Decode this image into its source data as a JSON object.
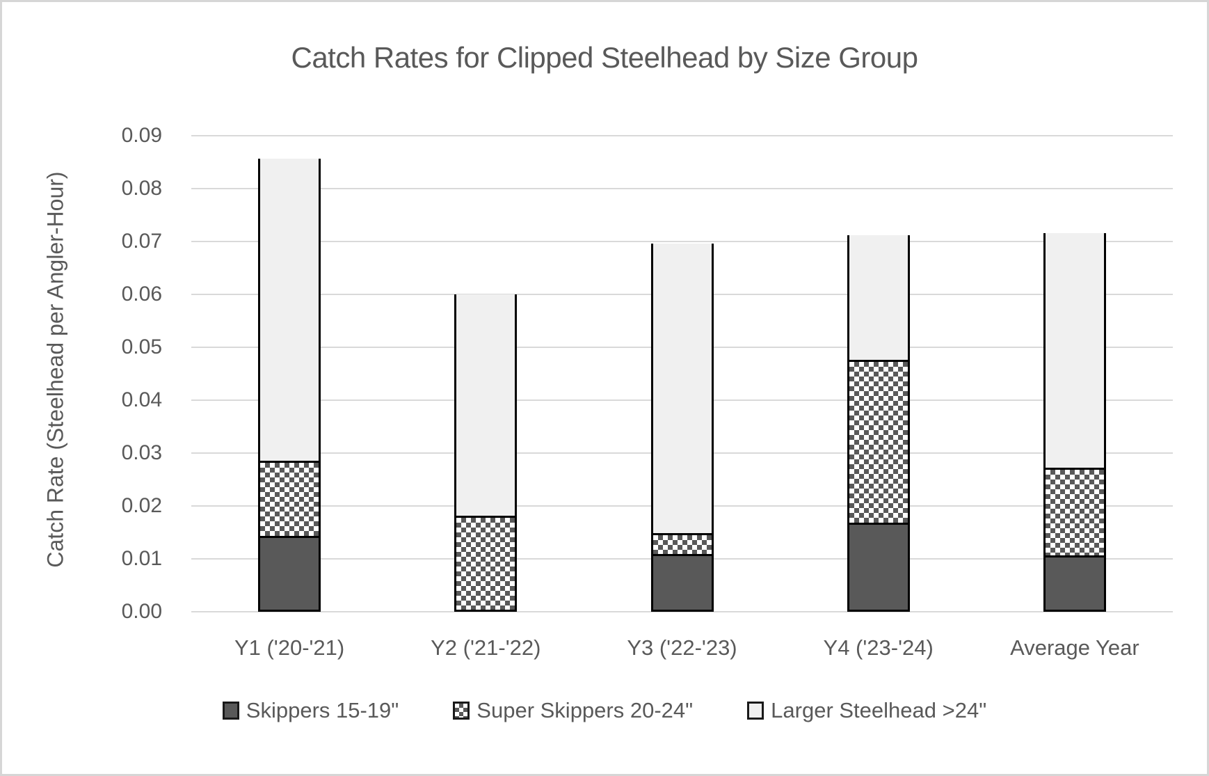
{
  "chart_data": {
    "type": "bar",
    "stacked": true,
    "title": "Catch Rates for Clipped Steelhead by Size Group",
    "xlabel": "",
    "ylabel": "Catch Rate (Steelhead per Angler-Hour)",
    "categories": [
      "Y1 ('20-'21)",
      "Y2 ('21-'22)",
      "Y3 ('22-'23)",
      "Y4 ('23-'24)",
      "Average Year"
    ],
    "series": [
      {
        "name": "Skippers 15-19\"",
        "fill": "dark",
        "values": [
          0.014,
          0.0,
          0.0105,
          0.0165,
          0.0102
        ]
      },
      {
        "name": "Super Skippers 20-24\"",
        "fill": "checker",
        "values": [
          0.0142,
          0.0178,
          0.004,
          0.0307,
          0.0167
        ]
      },
      {
        "name": "Larger Steelhead >24\"",
        "fill": "light",
        "values": [
          0.0571,
          0.0418,
          0.0547,
          0.0236,
          0.0443
        ]
      }
    ],
    "totals": [
      0.0853,
      0.0596,
      0.0692,
      0.0708,
      0.0712
    ],
    "ylim": [
      0,
      0.09
    ],
    "ytick_step": 0.01,
    "ytick_decimals": 2,
    "ytick_labels": [
      "0.00",
      "0.01",
      "0.02",
      "0.03",
      "0.04",
      "0.05",
      "0.06",
      "0.07",
      "0.08",
      "0.09"
    ],
    "grid": true,
    "legend_position": "bottom"
  },
  "colors": {
    "text": "#595959",
    "dark": "#595959",
    "light": "#f0f0f0",
    "checker_bg": "#ffffff",
    "gridline": "#d9d9d9",
    "bar_border": "#000000"
  }
}
